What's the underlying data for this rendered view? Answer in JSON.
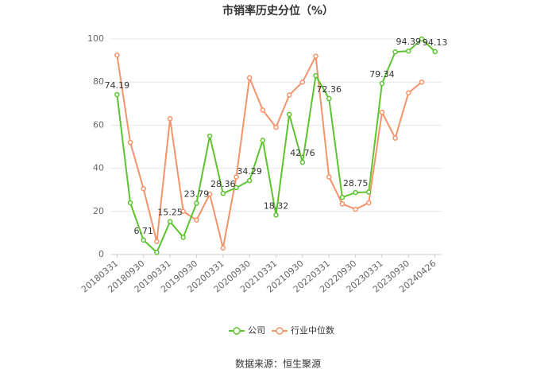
{
  "chart_data": {
    "type": "line",
    "title": "市销率历史分位（%）",
    "categories": [
      "20180331",
      null,
      "20180930",
      null,
      "20190331",
      null,
      "20190930",
      null,
      "20200331",
      null,
      "20200930",
      null,
      "20210331",
      null,
      "20210930",
      null,
      "20220331",
      null,
      "20220930",
      null,
      "20230331",
      null,
      "20230930",
      null,
      "20240426"
    ],
    "series": [
      {
        "name": "公司",
        "color": "#5cc42f",
        "values": [
          74.19,
          24,
          6.71,
          1,
          15.25,
          8,
          23.79,
          55,
          28.36,
          31,
          34.29,
          53,
          18.32,
          65,
          42.76,
          83,
          72.36,
          26.5,
          28.75,
          29,
          79.34,
          94,
          94.39,
          100,
          94.13
        ],
        "value_labels": [
          "74.19",
          null,
          "6.71",
          null,
          "15.25",
          null,
          "23.79",
          null,
          "28.36",
          null,
          "34.29",
          null,
          "18.32",
          null,
          "42.76",
          null,
          "72.36",
          null,
          "28.75",
          null,
          "79.34",
          null,
          "94.39",
          null,
          "94.13"
        ]
      },
      {
        "name": "行业中位数",
        "color": "#f4936a",
        "values": [
          92.5,
          52,
          30.5,
          6,
          63,
          20,
          16,
          28,
          3,
          36,
          82,
          67,
          59,
          74,
          80,
          92,
          36,
          23.5,
          21,
          24,
          66,
          54,
          75,
          80,
          null
        ]
      }
    ],
    "ylim": [
      0,
      100
    ],
    "yticks": [
      0,
      20,
      40,
      60,
      80,
      100
    ],
    "grid": true,
    "source": "数据来源：恒生聚源"
  }
}
